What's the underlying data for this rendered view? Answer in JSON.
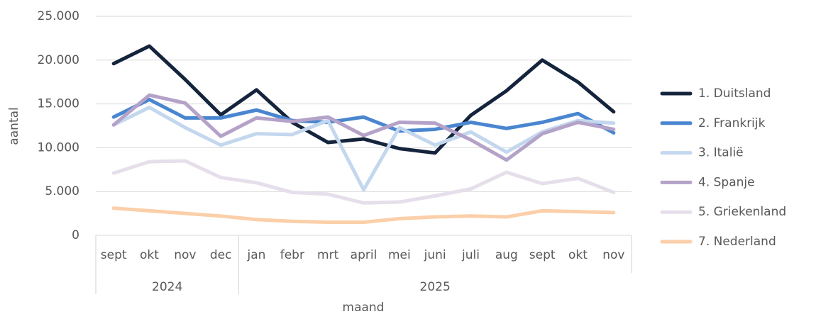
{
  "chart_data": {
    "type": "line",
    "y_label": "aantal",
    "x_label": "maand",
    "category_groups": [
      {
        "label": "2024",
        "categories": [
          "sept",
          "okt",
          "nov",
          "dec"
        ]
      },
      {
        "label": "2025",
        "categories": [
          "jan",
          "febr",
          "mrt",
          "april",
          "mei",
          "juni",
          "juli",
          "aug",
          "sept",
          "okt",
          "nov"
        ]
      }
    ],
    "series": [
      {
        "name": "1. Duitsland",
        "color": "#14243c",
        "values": [
          19600,
          21600,
          17800,
          13750,
          16600,
          12900,
          10600,
          11000,
          9900,
          9400,
          13700,
          16500,
          20000,
          17500,
          14100
        ]
      },
      {
        "name": "2. Frankrijk",
        "color": "#4a86d0",
        "values": [
          13500,
          15500,
          13400,
          13400,
          14300,
          13100,
          12900,
          13500,
          11900,
          12100,
          12900,
          12200,
          12900,
          13900,
          11700
        ]
      },
      {
        "name": "3. Italië",
        "color": "#c3d7ee",
        "values": [
          12600,
          14600,
          12300,
          10300,
          11600,
          11500,
          13100,
          5200,
          12300,
          10300,
          11800,
          9500,
          11800,
          13100,
          12800
        ]
      },
      {
        "name": "4. Spanje",
        "color": "#b4a2c8",
        "values": [
          12600,
          16000,
          15100,
          11300,
          13400,
          13000,
          13500,
          11400,
          12900,
          12800,
          10900,
          8600,
          11600,
          12900,
          12100
        ]
      },
      {
        "name": "5. Griekenland",
        "color": "#e6dfeb",
        "values": [
          7100,
          8400,
          8500,
          6600,
          6000,
          4900,
          4700,
          3700,
          3800,
          4500,
          5300,
          7200,
          5900,
          6500,
          4900
        ]
      },
      {
        "name": "7. Nederland",
        "color": "#fbcfa9",
        "values": [
          3100,
          2800,
          2500,
          2200,
          1800,
          1600,
          1500,
          1500,
          1900,
          2100,
          2200,
          2100,
          2800,
          2700,
          2600
        ]
      }
    ],
    "ylim": [
      0,
      25000
    ],
    "yticks": [
      0,
      {
        "value": 5000,
        "label": "5.000"
      },
      {
        "value": 10000,
        "label": "10.000"
      },
      {
        "value": 15000,
        "label": "15.000"
      },
      {
        "value": 20000,
        "label": "20.000"
      },
      {
        "value": 25000,
        "label": "25.000"
      }
    ],
    "grid": true,
    "legend": "right"
  }
}
